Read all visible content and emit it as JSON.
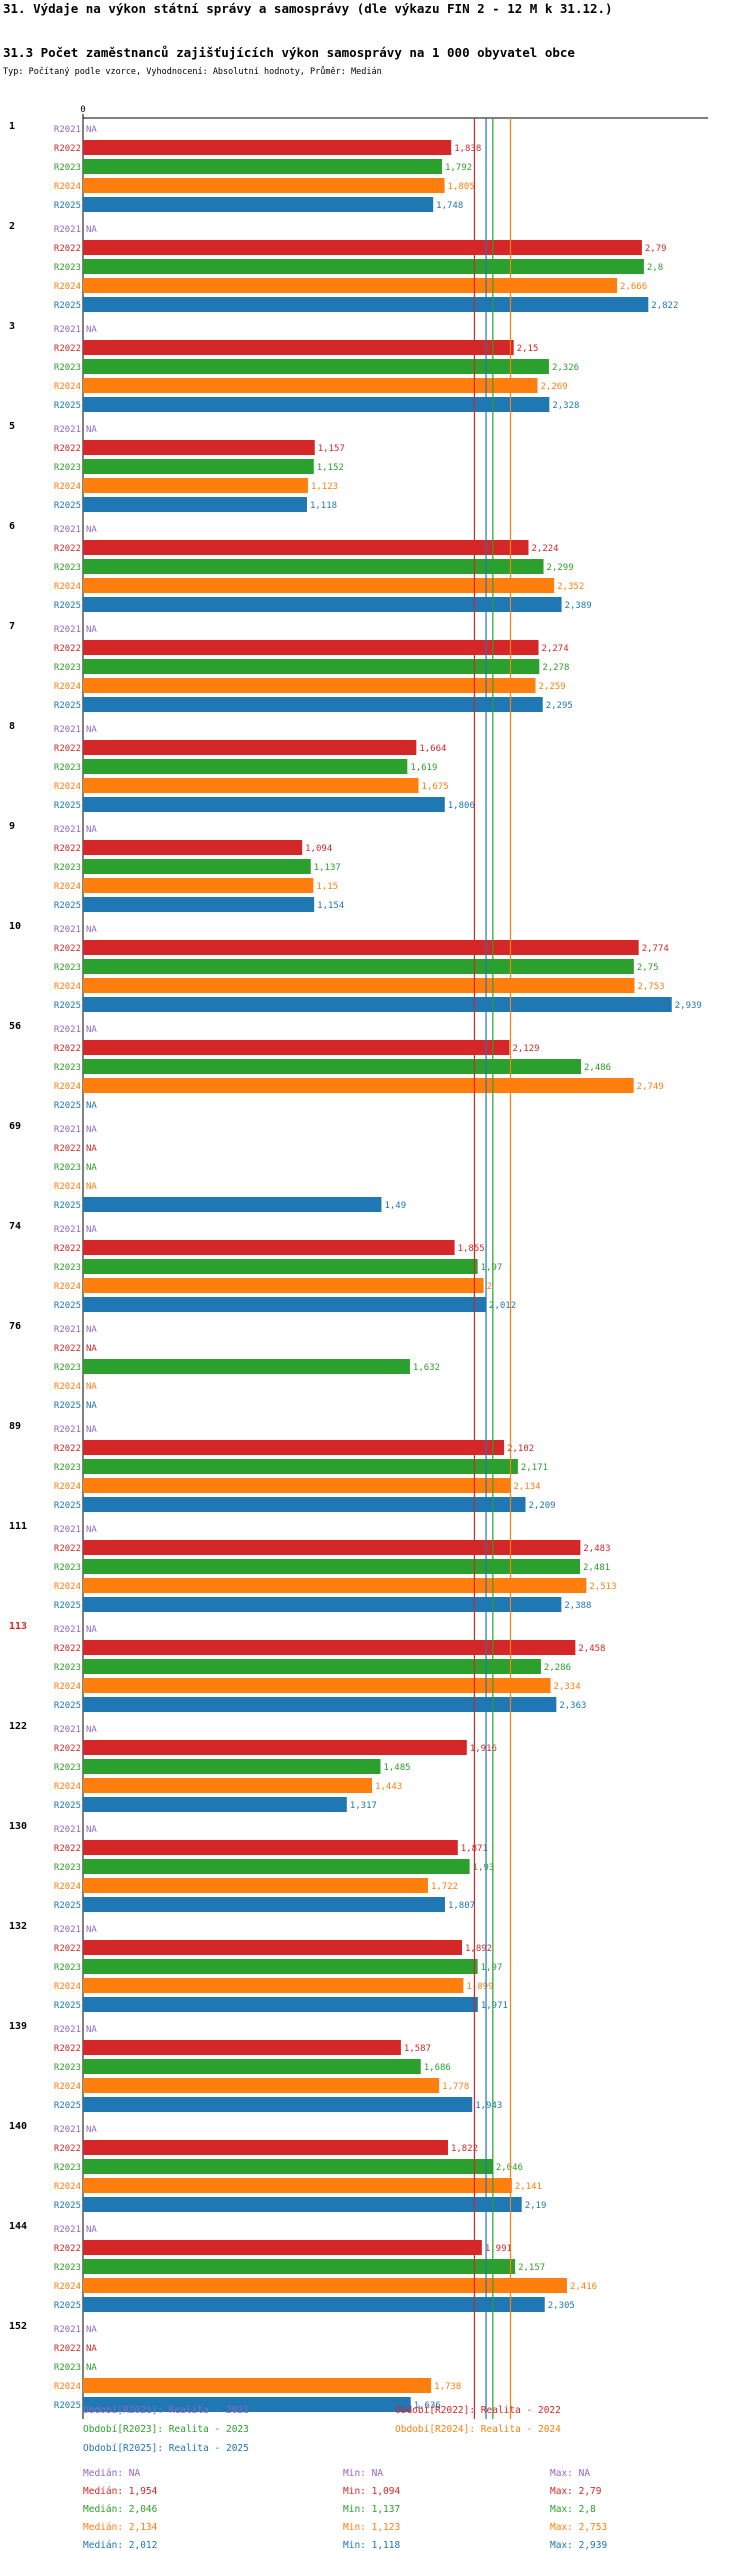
{
  "header": {
    "title": "31. Výdaje na výkon státní správy a samosprávy (dle výkazu FIN 2 - 12 M k 31.12.)",
    "subtitle": "31.3 Počet zaměstnanců zajišťujících výkon samosprávy na 1 000 obyvatel obce",
    "type_line": "Typ: Počítaný podle vzorce, Vyhodnocení: Absolutní hodnoty, Průměr: Medián"
  },
  "colors": {
    "R2021": "#9467bd",
    "R2022": "#d62728",
    "R2023": "#2ca02c",
    "R2024": "#ff7f0e",
    "R2025": "#1f77b4",
    "highlight_label": "#d62728"
  },
  "chart_data": {
    "type": "bar",
    "orientation": "horizontal",
    "axis_zero_label": "0",
    "x_range": [
      0,
      3.12
    ],
    "na_label": "NA",
    "highlighted_category": "113",
    "series_names": [
      "R2021",
      "R2022",
      "R2023",
      "R2024",
      "R2025"
    ],
    "categories": [
      "1",
      "2",
      "3",
      "5",
      "6",
      "7",
      "8",
      "9",
      "10",
      "56",
      "69",
      "74",
      "76",
      "89",
      "111",
      "113",
      "122",
      "130",
      "132",
      "139",
      "140",
      "144",
      "152"
    ],
    "series": [
      {
        "name": "R2021",
        "values": [
          null,
          null,
          null,
          null,
          null,
          null,
          null,
          null,
          null,
          null,
          null,
          null,
          null,
          null,
          null,
          null,
          null,
          null,
          null,
          null,
          null,
          null,
          null
        ]
      },
      {
        "name": "R2022",
        "values": [
          1.838,
          2.79,
          2.15,
          1.157,
          2.224,
          2.274,
          1.664,
          1.094,
          2.774,
          2.129,
          null,
          1.855,
          null,
          2.102,
          2.483,
          2.458,
          1.916,
          1.871,
          1.892,
          1.587,
          1.822,
          1.991,
          null
        ]
      },
      {
        "name": "R2023",
        "values": [
          1.792,
          2.8,
          2.326,
          1.152,
          2.299,
          2.278,
          1.619,
          1.137,
          2.75,
          2.486,
          null,
          1.97,
          1.632,
          2.171,
          2.481,
          2.286,
          1.485,
          1.93,
          1.97,
          1.686,
          2.046,
          2.157,
          null
        ]
      },
      {
        "name": "R2024",
        "values": [
          1.805,
          2.666,
          2.269,
          1.123,
          2.352,
          2.259,
          1.675,
          1.15,
          2.753,
          2.749,
          null,
          2,
          null,
          2.134,
          2.513,
          2.334,
          1.443,
          1.722,
          1.899,
          1.778,
          2.141,
          2.416,
          1.738
        ]
      },
      {
        "name": "R2025",
        "values": [
          1.748,
          2.822,
          2.328,
          1.118,
          2.389,
          2.295,
          1.806,
          1.154,
          2.939,
          null,
          1.49,
          2.012,
          null,
          2.209,
          2.388,
          2.363,
          1.317,
          1.807,
          1.971,
          1.943,
          2.19,
          2.305,
          1.636
        ]
      }
    ],
    "display_values": [
      [
        "NA",
        "1,838",
        "1,792",
        "1,805",
        "1,748"
      ],
      [
        "NA",
        "2,79",
        "2,8",
        "2,666",
        "2,822"
      ],
      [
        "NA",
        "2,15",
        "2,326",
        "2,269",
        "2,328"
      ],
      [
        "NA",
        "1,157",
        "1,152",
        "1,123",
        "1,118"
      ],
      [
        "NA",
        "2,224",
        "2,299",
        "2,352",
        "2,389"
      ],
      [
        "NA",
        "2,274",
        "2,278",
        "2,259",
        "2,295"
      ],
      [
        "NA",
        "1,664",
        "1,619",
        "1,675",
        "1,806"
      ],
      [
        "NA",
        "1,094",
        "1,137",
        "1,15",
        "1,154"
      ],
      [
        "NA",
        "2,774",
        "2,75",
        "2,753",
        "2,939"
      ],
      [
        "NA",
        "2,129",
        "2,486",
        "2,749",
        "NA"
      ],
      [
        "NA",
        "NA",
        "NA",
        "NA",
        "1,49"
      ],
      [
        "NA",
        "1,855",
        "1,97",
        "2",
        "2,012"
      ],
      [
        "NA",
        "NA",
        "1,632",
        "NA",
        "NA"
      ],
      [
        "NA",
        "2,102",
        "2,171",
        "2,134",
        "2,209"
      ],
      [
        "NA",
        "2,483",
        "2,481",
        "2,513",
        "2,388"
      ],
      [
        "NA",
        "2,458",
        "2,286",
        "2,334",
        "2,363"
      ],
      [
        "NA",
        "1,916",
        "1,485",
        "1,443",
        "1,317"
      ],
      [
        "NA",
        "1,871",
        "1,93",
        "1,722",
        "1,807"
      ],
      [
        "NA",
        "1,892",
        "1,97",
        "1,899",
        "1,971"
      ],
      [
        "NA",
        "1,587",
        "1,686",
        "1,778",
        "1,943"
      ],
      [
        "NA",
        "1,822",
        "2,046",
        "2,141",
        "2,19"
      ],
      [
        "NA",
        "1,991",
        "2,157",
        "2,416",
        "2,305"
      ],
      [
        "NA",
        "NA",
        "NA",
        "1,738",
        "1,636"
      ]
    ],
    "reference_lines": [
      {
        "series": "R2022",
        "value": 1.954
      },
      {
        "series": "R2023",
        "value": 2.046
      },
      {
        "series": "R2024",
        "value": 2.134
      },
      {
        "series": "R2025",
        "value": 2.012
      }
    ]
  },
  "legend": {
    "periods": [
      "Období[R2021]: Realita - 2021",
      "Období[R2022]: Realita - 2022",
      "Období[R2023]: Realita - 2023",
      "Období[R2024]: Realita - 2024",
      "Období[R2025]: Realita - 2025"
    ],
    "stats": [
      {
        "series": "R2021",
        "median": "Medián: NA",
        "min": "Min: NA",
        "max": "Max: NA"
      },
      {
        "series": "R2022",
        "median": "Medián: 1,954",
        "min": "Min: 1,094",
        "max": "Max: 2,79"
      },
      {
        "series": "R2023",
        "median": "Medián: 2,046",
        "min": "Min: 1,137",
        "max": "Max: 2,8"
      },
      {
        "series": "R2024",
        "median": "Medián: 2,134",
        "min": "Min: 1,123",
        "max": "Max: 2,753"
      },
      {
        "series": "R2025",
        "median": "Medián: 2,012",
        "min": "Min: 1,118",
        "max": "Max: 2,939"
      }
    ]
  }
}
